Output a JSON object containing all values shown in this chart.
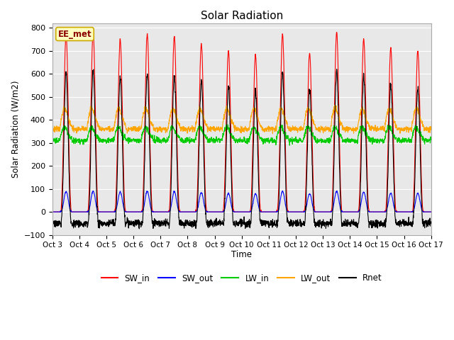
{
  "title": "Solar Radiation",
  "ylabel": "Solar Radiation (W/m2)",
  "xlabel": "Time",
  "ylim": [
    -100,
    820
  ],
  "xlim": [
    0,
    336
  ],
  "annotation_text": "EE_met",
  "annotation_box_facecolor": "#FFFFC0",
  "annotation_box_edgecolor": "#CCAA00",
  "background_color": "#FFFFFF",
  "plot_bg_color": "#E8E8E8",
  "grid_color": "#FFFFFF",
  "series_colors": {
    "SW_in": "#FF0000",
    "SW_out": "#0000FF",
    "LW_in": "#00CC00",
    "LW_out": "#FFA500",
    "Rnet": "#000000"
  },
  "tick_labels": [
    "Oct 3",
    "Oct 4",
    "Oct 5",
    "Oct 6",
    "Oct 7",
    "Oct 8",
    "Oct 9",
    "Oct 10",
    "Oct 11",
    "Oct 12",
    "Oct 13",
    "Oct 14",
    "Oct 15",
    "Oct 16",
    "Oct 17"
  ],
  "yticks": [
    -100,
    0,
    100,
    200,
    300,
    400,
    500,
    600,
    700,
    800
  ],
  "n_days": 14,
  "sw_peaks": [
    770,
    780,
    750,
    770,
    760,
    730,
    700,
    680,
    770,
    690,
    780,
    750,
    710,
    700
  ],
  "day_start_hour": 7.0,
  "day_end_hour": 17.5,
  "lw_in_base": 320,
  "lw_out_base": 370,
  "night_rnet": -55
}
